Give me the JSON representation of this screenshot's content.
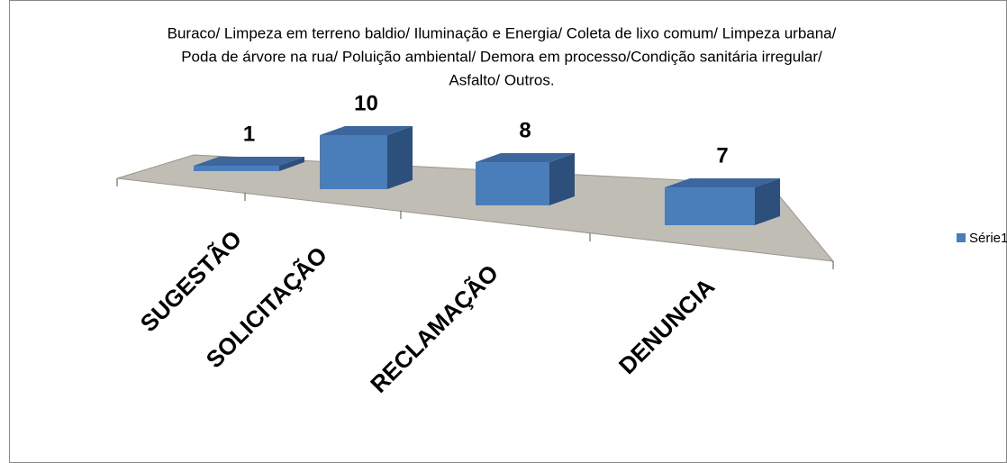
{
  "chart_data": {
    "type": "bar3d",
    "title": [
      "Buraco/ Limpeza em terreno baldio/ Iluminação e Energia/ Coleta de lixo comum/ Limpeza urbana/",
      "Poda de árvore na rua/ Poluição ambiental/ Demora em processo/Condição sanitária irregular/",
      "Asfalto/ Outros."
    ],
    "categories": [
      "SUGESTÃO",
      "SOLICITAÇÃO",
      "RECLAMAÇÃO",
      "DENUNCIA"
    ],
    "series": [
      {
        "name": "Série1",
        "color": "#4a7ebb",
        "values": [
          1,
          10,
          8,
          7
        ]
      }
    ]
  }
}
